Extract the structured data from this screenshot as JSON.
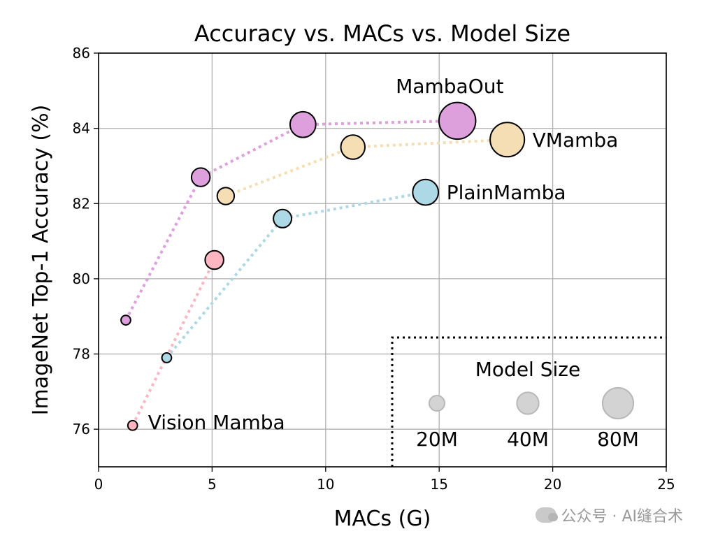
{
  "chart_data": {
    "type": "scatter",
    "title": "Accuracy vs. MACs vs. Model Size",
    "xlabel": "MACs (G)",
    "ylabel": "ImageNet Top-1 Accuracy (%)",
    "xlim": [
      0,
      25
    ],
    "ylim": [
      75,
      86
    ],
    "xticks": [
      0,
      5,
      10,
      15,
      20,
      25
    ],
    "yticks": [
      76,
      78,
      80,
      82,
      84,
      86
    ],
    "grid": true,
    "series": [
      {
        "name": "MambaOut",
        "color": "#dda0dd",
        "points": [
          {
            "x": 1.2,
            "y": 78.9,
            "size": 7
          },
          {
            "x": 4.5,
            "y": 82.7,
            "size": 26
          },
          {
            "x": 9.0,
            "y": 84.1,
            "size": 50
          },
          {
            "x": 15.8,
            "y": 84.2,
            "size": 102
          }
        ]
      },
      {
        "name": "VMamba",
        "color": "#f5deb3",
        "points": [
          {
            "x": 5.6,
            "y": 82.2,
            "size": 22
          },
          {
            "x": 11.2,
            "y": 83.5,
            "size": 44
          },
          {
            "x": 18.0,
            "y": 83.7,
            "size": 89
          }
        ]
      },
      {
        "name": "PlainMamba",
        "color": "#add8e6",
        "points": [
          {
            "x": 3.0,
            "y": 77.9,
            "size": 7
          },
          {
            "x": 8.1,
            "y": 81.6,
            "size": 25
          },
          {
            "x": 14.4,
            "y": 82.3,
            "size": 50
          }
        ]
      },
      {
        "name": "Vision Mamba",
        "color": "#ffb6c1",
        "points": [
          {
            "x": 1.5,
            "y": 76.1,
            "size": 7
          },
          {
            "x": 5.1,
            "y": 80.5,
            "size": 26
          }
        ]
      }
    ],
    "size_legend": {
      "title": "Model Size",
      "placement": "bottom-right",
      "color": "#d3d3d3",
      "items": [
        {
          "label": "20M",
          "size": 20
        },
        {
          "label": "40M",
          "size": 40
        },
        {
          "label": "80M",
          "size": 80
        }
      ]
    }
  },
  "watermark": "公众号 · AI缝合术"
}
